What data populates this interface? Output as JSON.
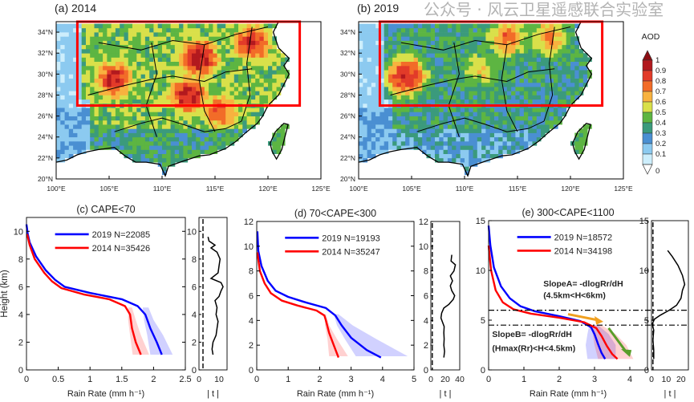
{
  "watermark": "公众号 · 风云卫星遥感联合实验室",
  "colorbar": {
    "title": "AOD",
    "labels": [
      "0",
      "0.1",
      "0.2",
      "0.3",
      "0.4",
      "0.5",
      "0.6",
      "0.7",
      "0.8",
      "0.9",
      "1"
    ],
    "colors": [
      "#cdeefc",
      "#8ccaf0",
      "#4a8fd2",
      "#3b9a7c",
      "#5db542",
      "#d9e04a",
      "#f8b23f",
      "#f26c28",
      "#e23b29",
      "#b2191e"
    ],
    "over_color": "#8c0d12",
    "under_color": "#ffffff"
  },
  "chart_data": [
    {
      "type": "heatmap",
      "id": "a",
      "title": "(a) 2014",
      "variable": "AOD",
      "lon_range": [
        100,
        125
      ],
      "lat_range": [
        20,
        35
      ],
      "lon_ticks": [
        "100°E",
        "105°E",
        "110°E",
        "115°E",
        "120°E",
        "125°E"
      ],
      "lat_ticks": [
        "20°N",
        "22°N",
        "24°N",
        "26°N",
        "28°N",
        "30°N",
        "32°N",
        "34°N"
      ],
      "highlight_box": {
        "lon": [
          102,
          123
        ],
        "lat": [
          27,
          35
        ],
        "color": "#ff0000"
      },
      "hotspots": [
        {
          "lon": 113.5,
          "lat": 31.5,
          "aod": 0.95
        },
        {
          "lon": 112.5,
          "lat": 28.0,
          "aod": 0.95
        },
        {
          "lon": 105.5,
          "lat": 29.5,
          "aod": 0.9
        },
        {
          "lon": 118.5,
          "lat": 33.0,
          "aod": 0.9
        },
        {
          "lon": 115.5,
          "lat": 26.5,
          "aod": 0.8
        }
      ],
      "background_aod": 0.45
    },
    {
      "type": "heatmap",
      "id": "b",
      "title": "(b) 2019",
      "variable": "AOD",
      "lon_range": [
        100,
        125
      ],
      "lat_range": [
        20,
        35
      ],
      "lon_ticks": [
        "100°E",
        "105°E",
        "110°E",
        "115°E",
        "120°E",
        "125°E"
      ],
      "lat_ticks": [
        "20°N",
        "22°N",
        "24°N",
        "26°N",
        "28°N",
        "30°N",
        "32°N",
        "34°N"
      ],
      "highlight_box": {
        "lon": [
          102,
          123
        ],
        "lat": [
          27,
          35
        ],
        "color": "#ff0000"
      },
      "hotspots": [
        {
          "lon": 104.5,
          "lat": 29.8,
          "aod": 0.9
        },
        {
          "lon": 114.0,
          "lat": 33.5,
          "aod": 0.75
        },
        {
          "lon": 118.0,
          "lat": 33.5,
          "aod": 0.7
        },
        {
          "lon": 111.5,
          "lat": 30.5,
          "aod": 0.6
        }
      ],
      "background_aod": 0.33
    },
    {
      "type": "line",
      "id": "c",
      "title": "(c) CAPE<70",
      "xlabel": "Rain Rate (mm h⁻¹)",
      "ylabel": "Height  (km)",
      "xlim": [
        0,
        2.5
      ],
      "ylim": [
        0,
        11
      ],
      "xticks": [
        "0",
        "0.5",
        "1",
        "1.5",
        "2",
        "2.5"
      ],
      "xtick_values": [
        0,
        0.5,
        1,
        1.5,
        2,
        2.5
      ],
      "yticks": [
        "0",
        "2",
        "4",
        "6",
        "8",
        "10"
      ],
      "ytick_values": [
        0,
        2,
        4,
        6,
        8,
        10
      ],
      "series": [
        {
          "name": "2019 N=22085",
          "color": "#0000ff",
          "points": [
            [
              2.13,
              1.1
            ],
            [
              2.05,
              2
            ],
            [
              1.95,
              3
            ],
            [
              1.87,
              4
            ],
            [
              1.75,
              4.6
            ],
            [
              1.5,
              5.1
            ],
            [
              1.0,
              5.55
            ],
            [
              0.6,
              6.0
            ],
            [
              0.45,
              6.5
            ],
            [
              0.3,
              7.2
            ],
            [
              0.15,
              8.2
            ],
            [
              0.05,
              9.2
            ],
            [
              0.02,
              9.8
            ],
            [
              0,
              10.5
            ]
          ],
          "band": [
            [
              1.95,
              2.3
            ],
            [
              1.9,
              2.15
            ],
            [
              1.85,
              2.0
            ],
            [
              1.83,
              1.92
            ]
          ]
        },
        {
          "name": "2014 N=35426",
          "color": "#ff0000",
          "points": [
            [
              1.8,
              1.1
            ],
            [
              1.72,
              2
            ],
            [
              1.66,
              3
            ],
            [
              1.63,
              4
            ],
            [
              1.55,
              4.6
            ],
            [
              1.3,
              5.1
            ],
            [
              0.9,
              5.45
            ],
            [
              0.55,
              5.9
            ],
            [
              0.4,
              6.4
            ],
            [
              0.28,
              7.0
            ],
            [
              0.13,
              8.0
            ],
            [
              0.05,
              9.0
            ],
            [
              0.01,
              9.8
            ]
          ],
          "band": [
            [
              1.67,
              1.93
            ],
            [
              1.63,
              1.8
            ],
            [
              1.6,
              1.72
            ],
            [
              1.6,
              1.66
            ]
          ]
        }
      ],
      "t_panel": {
        "xlabel": "| t |",
        "xlim": [
          0,
          14
        ],
        "xticks": [
          "0",
          "10"
        ],
        "xtick_values": [
          0,
          10
        ],
        "threshold": 2,
        "points": [
          [
            7,
            1.1
          ],
          [
            6.5,
            1.5
          ],
          [
            7,
            2
          ],
          [
            8.5,
            2.5
          ],
          [
            9,
            3
          ],
          [
            9.5,
            3.5
          ],
          [
            8.5,
            4
          ],
          [
            9,
            4.5
          ],
          [
            8,
            5
          ],
          [
            10,
            5.3
          ],
          [
            11,
            5.7
          ],
          [
            12,
            6
          ],
          [
            11,
            6.3
          ],
          [
            6,
            6.6
          ],
          [
            9.5,
            7
          ],
          [
            10,
            7.5
          ],
          [
            10.5,
            8
          ],
          [
            9,
            8.5
          ],
          [
            6,
            8.8
          ],
          [
            8,
            9
          ],
          [
            5,
            9.3
          ],
          [
            4.5,
            9.6
          ]
        ]
      }
    },
    {
      "type": "line",
      "id": "d",
      "title": "(d) 70<CAPE<300",
      "xlabel": "Rain Rate (mm h⁻¹)",
      "ylabel": "",
      "xlim": [
        0,
        5
      ],
      "ylim": [
        0,
        12
      ],
      "xticks": [
        "0",
        "1",
        "2",
        "3",
        "4",
        "5"
      ],
      "xtick_values": [
        0,
        1,
        2,
        3,
        4,
        5
      ],
      "yticks": [
        "0",
        "2",
        "4",
        "6",
        "8",
        "10",
        "12"
      ],
      "ytick_values": [
        0,
        2,
        4,
        6,
        8,
        10,
        12
      ],
      "series": [
        {
          "name": "2019 N=19193",
          "color": "#0000ff",
          "points": [
            [
              3.95,
              1
            ],
            [
              3.5,
              1.6
            ],
            [
              3.0,
              2.6
            ],
            [
              2.7,
              3.6
            ],
            [
              2.5,
              4.4
            ],
            [
              2.2,
              5.0
            ],
            [
              1.5,
              5.5
            ],
            [
              1.0,
              5.9
            ],
            [
              0.6,
              6.4
            ],
            [
              0.35,
              7.2
            ],
            [
              0.15,
              8.4
            ],
            [
              0.05,
              9.6
            ],
            [
              0.02,
              11.2
            ]
          ],
          "band": [
            [
              3.15,
              4.8
            ],
            [
              2.8,
              3.8
            ],
            [
              2.55,
              3.05
            ],
            [
              2.45,
              2.6
            ]
          ]
        },
        {
          "name": "2014 N=35247",
          "color": "#ff0000",
          "points": [
            [
              2.6,
              1
            ],
            [
              2.45,
              2
            ],
            [
              2.3,
              3
            ],
            [
              2.2,
              4
            ],
            [
              2.15,
              4.4
            ],
            [
              1.9,
              4.8
            ],
            [
              1.3,
              5.2
            ],
            [
              0.8,
              5.6
            ],
            [
              0.45,
              6.2
            ],
            [
              0.25,
              7.0
            ],
            [
              0.1,
              8.0
            ],
            [
              0.02,
              9.5
            ]
          ],
          "band": [
            [
              2.3,
              2.9
            ],
            [
              2.25,
              2.55
            ],
            [
              2.17,
              2.3
            ],
            [
              2.15,
              2.2
            ]
          ]
        }
      ],
      "t_panel": {
        "xlabel": "| t |",
        "xlim": [
          0,
          40
        ],
        "xticks": [
          "0",
          "20",
          "40"
        ],
        "xtick_values": [
          0,
          20,
          40
        ],
        "threshold": 2,
        "points": [
          [
            18,
            1
          ],
          [
            19,
            1.5
          ],
          [
            18,
            2
          ],
          [
            18.5,
            2.5
          ],
          [
            18,
            3
          ],
          [
            18.5,
            3.5
          ],
          [
            14,
            4.2
          ],
          [
            15,
            4.6
          ],
          [
            18,
            5.0
          ],
          [
            25,
            5.3
          ],
          [
            31,
            5.7
          ],
          [
            33,
            6
          ],
          [
            29,
            6.4
          ],
          [
            27,
            6.8
          ],
          [
            30,
            7.2
          ],
          [
            27,
            7.6
          ],
          [
            32,
            8
          ],
          [
            34,
            8.5
          ],
          [
            28,
            8.8
          ],
          [
            29,
            9.3
          ]
        ]
      }
    },
    {
      "type": "line",
      "id": "e",
      "title": "(e) 300<CAPE<1100",
      "xlabel": "Rain Rate (mm h⁻¹)",
      "ylabel": "",
      "xlim": [
        0,
        4.5
      ],
      "ylim": [
        0,
        15
      ],
      "xticks": [
        "0",
        "1",
        "2",
        "3",
        "4"
      ],
      "xtick_values": [
        0,
        1,
        2,
        3,
        4
      ],
      "yticks": [
        "0",
        "5",
        "10",
        "15"
      ],
      "ytick_values": [
        0,
        5,
        10,
        15
      ],
      "reference_heights": [
        6,
        4.5
      ],
      "annotations": [
        {
          "text": "SlopeA= -dlogRr/dH",
          "color": "#f0a020"
        },
        {
          "text": "(4.5km<H<6km)",
          "color": "#f0a020"
        },
        {
          "text": "SlopeB= -dlogRr/dH",
          "color": "#5a9e2a"
        },
        {
          "text": "(Hmax(Rr)<H<4.5km)",
          "color": "#5a9e2a"
        }
      ],
      "series": [
        {
          "name": "2019 N=18572",
          "color": "#0000ff",
          "points": [
            [
              3.3,
              1.1
            ],
            [
              3.2,
              1.7
            ],
            [
              3.1,
              2.6
            ],
            [
              3.0,
              3.6
            ],
            [
              2.9,
              4.3
            ],
            [
              2.6,
              4.9
            ],
            [
              2.0,
              5.4
            ],
            [
              1.3,
              5.9
            ],
            [
              0.9,
              6.4
            ],
            [
              0.6,
              7.2
            ],
            [
              0.35,
              8.4
            ],
            [
              0.15,
              10.3
            ],
            [
              0.05,
              12.5
            ],
            [
              0,
              14.5
            ]
          ],
          "band": [
            [
              2.8,
              3.6
            ],
            [
              2.75,
              3.6
            ],
            [
              2.8,
              3.4
            ],
            [
              2.85,
              3.1
            ]
          ]
        },
        {
          "name": "2014 N=34198",
          "color": "#ff0000",
          "points": [
            [
              3.65,
              1.1
            ],
            [
              3.5,
              1.6
            ],
            [
              3.35,
              2.4
            ],
            [
              3.2,
              3.4
            ],
            [
              3.05,
              4.2
            ],
            [
              2.7,
              4.8
            ],
            [
              2.0,
              5.25
            ],
            [
              1.2,
              5.65
            ],
            [
              0.7,
              6.1
            ],
            [
              0.4,
              6.8
            ],
            [
              0.2,
              8.0
            ],
            [
              0.07,
              10
            ],
            [
              0,
              12.5
            ]
          ],
          "band": [
            [
              3.1,
              4.1
            ],
            [
              3.0,
              3.9
            ],
            [
              2.95,
              3.6
            ],
            [
              2.9,
              3.2
            ]
          ]
        }
      ],
      "t_panel": {
        "xlabel": "| t |",
        "xlim": [
          0,
          25
        ],
        "xticks": [
          "0",
          "10",
          "20"
        ],
        "xtick_values": [
          0,
          10,
          20
        ],
        "threshold": 1,
        "points": [
          [
            1.5,
            1.1
          ],
          [
            1.5,
            2
          ],
          [
            1,
            3
          ],
          [
            1.5,
            4
          ],
          [
            0.5,
            4.6
          ],
          [
            2,
            5.1
          ],
          [
            6,
            5.5
          ],
          [
            12,
            6
          ],
          [
            17,
            6.5
          ],
          [
            20,
            7.2
          ],
          [
            21,
            8
          ],
          [
            22.5,
            8.6
          ],
          [
            21,
            9.5
          ],
          [
            18,
            10.5
          ],
          [
            14,
            11.4
          ],
          [
            11,
            12
          ]
        ]
      }
    }
  ]
}
